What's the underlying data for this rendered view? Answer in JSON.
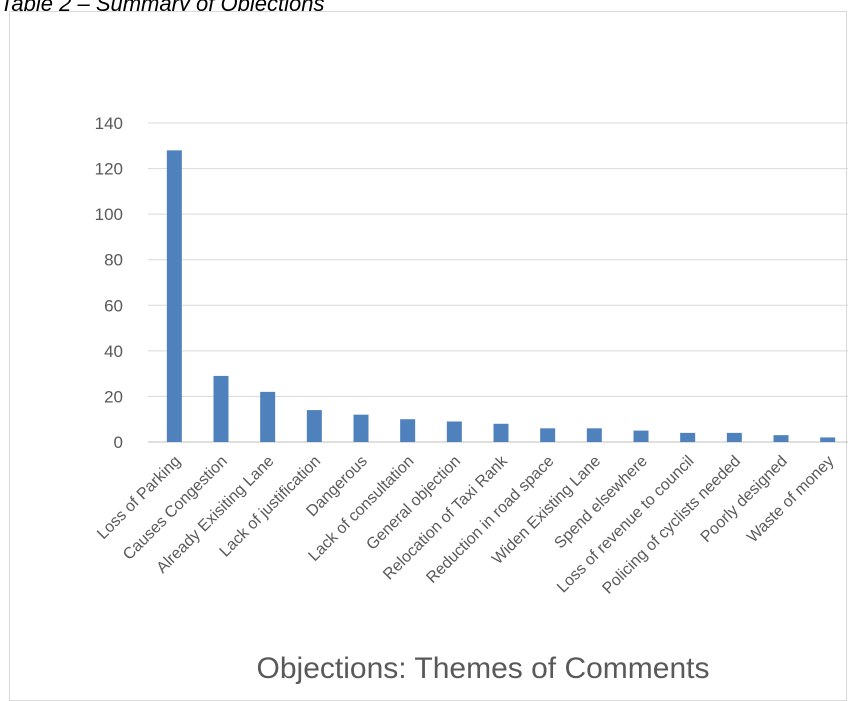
{
  "caption": "Table 2 – Summary of Objections",
  "chart_data": {
    "type": "bar",
    "title": "",
    "xlabel": "Objections: Themes of Comments",
    "ylabel": "",
    "ylim": [
      0,
      140
    ],
    "yticks": [
      0,
      20,
      40,
      60,
      80,
      100,
      120,
      140
    ],
    "grid": true,
    "legend": "none",
    "bar_color": "#4f81bd",
    "categories": [
      "Loss of Parking",
      "Causes Congestion",
      "Already Exisiting Lane",
      "Lack of justification",
      "Dangerous",
      "Lack of consultation",
      "General objection",
      "Relocation of Taxi Rank",
      "Reduction in road space",
      "Widen Existing Lane",
      "Spend elsewhere",
      "Loss of revenue to council",
      "Policing of cyclists needed",
      "Poorly designed",
      "Waste of money"
    ],
    "values": [
      128,
      29,
      22,
      14,
      12,
      10,
      9,
      8,
      6,
      6,
      5,
      4,
      4,
      3,
      2
    ]
  }
}
